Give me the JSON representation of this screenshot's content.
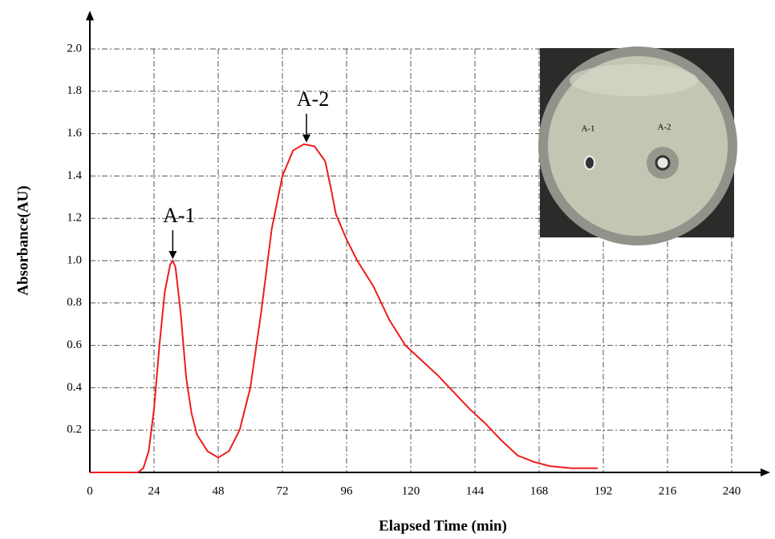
{
  "chart_data": {
    "type": "line",
    "x_label": "Elapsed Time (min)",
    "y_label": "Absorbance(AU)",
    "x": [
      0,
      18,
      20,
      22,
      24,
      26,
      28,
      30,
      31,
      32,
      34,
      36,
      38,
      40,
      44,
      48,
      52,
      56,
      60,
      64,
      68,
      72,
      76,
      80,
      84,
      88,
      90,
      92,
      96,
      100,
      106,
      112,
      118,
      124,
      130,
      136,
      142,
      148,
      154,
      160,
      166,
      172,
      180,
      190
    ],
    "values": [
      0,
      0,
      0.02,
      0.1,
      0.3,
      0.6,
      0.85,
      0.98,
      1.0,
      0.97,
      0.75,
      0.45,
      0.28,
      0.18,
      0.1,
      0.07,
      0.1,
      0.2,
      0.4,
      0.75,
      1.15,
      1.4,
      1.52,
      1.55,
      1.54,
      1.47,
      1.35,
      1.22,
      1.1,
      1.0,
      0.88,
      0.72,
      0.6,
      0.53,
      0.46,
      0.38,
      0.3,
      0.23,
      0.15,
      0.08,
      0.05,
      0.03,
      0.02,
      0.02
    ],
    "color": "#ee1c1c",
    "xlim": [
      0,
      252
    ],
    "ylim": [
      0,
      2.15
    ],
    "xticks": [
      0,
      24,
      48,
      72,
      96,
      120,
      144,
      168,
      192,
      216,
      240
    ],
    "yticks": [
      0.2,
      0.4,
      0.6,
      0.8,
      {
        "value": 1,
        "label": "1.0"
      },
      1.2,
      1.4,
      1.6,
      1.8,
      {
        "value": 2,
        "label": "2.0"
      }
    ],
    "grid": true,
    "annotations": [
      {
        "text": "A-1",
        "x": 31,
        "y": 1.0
      },
      {
        "text": "A-2",
        "x": 81,
        "y": 1.55
      }
    ],
    "inset_labels": [
      "A-1",
      "A-2"
    ]
  }
}
